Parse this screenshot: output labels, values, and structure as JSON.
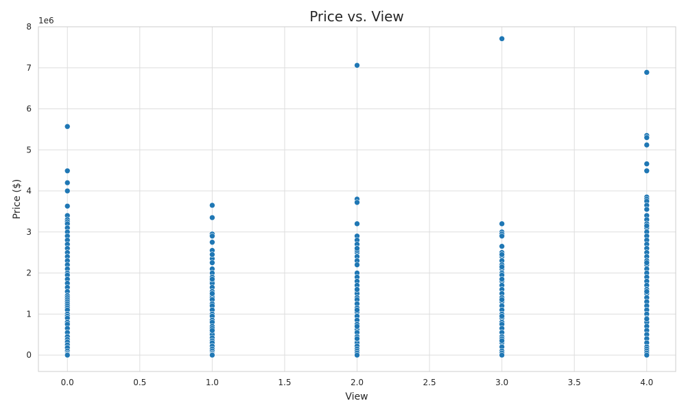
{
  "chart_data": {
    "type": "scatter",
    "title": "Price vs. View",
    "xlabel": "View",
    "ylabel": "Price ($)",
    "y_offset_label": "1e6",
    "xlim": [
      -0.2,
      4.2
    ],
    "ylim": [
      -0.4,
      8.0
    ],
    "y_scale": 1000000,
    "xticks": [
      0.0,
      0.5,
      1.0,
      1.5,
      2.0,
      2.5,
      3.0,
      3.5,
      4.0
    ],
    "xtick_labels": [
      "0.0",
      "0.5",
      "1.0",
      "1.5",
      "2.0",
      "2.5",
      "3.0",
      "3.5",
      "4.0"
    ],
    "yticks": [
      0,
      1,
      2,
      3,
      4,
      5,
      6,
      7,
      8
    ],
    "ytick_labels": [
      "0",
      "1",
      "2",
      "3",
      "4",
      "5",
      "6",
      "7",
      "8"
    ],
    "grid": true,
    "color": "#1f77b4",
    "series": [
      {
        "x": [
          0,
          0,
          0,
          0,
          0,
          0,
          0,
          0,
          0,
          0,
          0,
          0,
          0,
          0,
          0,
          0,
          0,
          0,
          0,
          0,
          0,
          0,
          0,
          0,
          0,
          0,
          0,
          0,
          0,
          0,
          0,
          0,
          0,
          0,
          0,
          0,
          0,
          0,
          0,
          0,
          0,
          0,
          0,
          0,
          0,
          0,
          0,
          0,
          0,
          0,
          1,
          1,
          1,
          1,
          1,
          1,
          1,
          1,
          1,
          1,
          1,
          1,
          1,
          1,
          1,
          1,
          1,
          1,
          1,
          1,
          1,
          1,
          1,
          1,
          1,
          1,
          1,
          1,
          1,
          1,
          1,
          1,
          1,
          1,
          1,
          1,
          1,
          1,
          1,
          1,
          1,
          1,
          2,
          2,
          2,
          2,
          2,
          2,
          2,
          2,
          2,
          2,
          2,
          2,
          2,
          2,
          2,
          2,
          2,
          2,
          2,
          2,
          2,
          2,
          2,
          2,
          2,
          2,
          2,
          2,
          2,
          2,
          2,
          2,
          2,
          2,
          2,
          2,
          2,
          2,
          2,
          2,
          2,
          2,
          3,
          3,
          3,
          3,
          3,
          3,
          3,
          3,
          3,
          3,
          3,
          3,
          3,
          3,
          3,
          3,
          3,
          3,
          3,
          3,
          3,
          3,
          3,
          3,
          3,
          3,
          3,
          3,
          3,
          3,
          3,
          3,
          3,
          3,
          3,
          3,
          3,
          3,
          3,
          3,
          4,
          4,
          4,
          4,
          4,
          4,
          4,
          4,
          4,
          4,
          4,
          4,
          4,
          4,
          4,
          4,
          4,
          4,
          4,
          4,
          4,
          4,
          4,
          4,
          4,
          4,
          4,
          4,
          4,
          4,
          4,
          4,
          4,
          4,
          4,
          4,
          4,
          4,
          4,
          4,
          4,
          4,
          4,
          4,
          4,
          4,
          4,
          4,
          4,
          4,
          4,
          4
        ],
        "y": [
          5.57,
          4.49,
          4.2,
          4.0,
          3.63,
          3.4,
          3.3,
          3.25,
          3.2,
          3.1,
          3.0,
          2.9,
          2.8,
          2.7,
          2.6,
          2.5,
          2.4,
          2.3,
          2.2,
          2.1,
          2.0,
          1.95,
          1.85,
          1.75,
          1.65,
          1.55,
          1.45,
          1.4,
          1.35,
          1.3,
          1.25,
          1.2,
          1.15,
          1.1,
          1.0,
          0.95,
          0.9,
          0.8,
          0.75,
          0.65,
          0.55,
          0.45,
          0.38,
          0.32,
          0.25,
          0.18,
          0.1,
          0.05,
          0.02,
          0.0,
          3.65,
          3.35,
          2.95,
          2.9,
          2.75,
          2.55,
          2.35,
          2.25,
          2.1,
          2.0,
          1.9,
          1.8,
          1.75,
          1.65,
          1.55,
          1.45,
          1.4,
          1.35,
          1.25,
          1.2,
          1.1,
          1.0,
          0.95,
          0.85,
          0.8,
          0.7,
          0.65,
          0.55,
          0.5,
          0.42,
          0.35,
          0.3,
          0.22,
          0.15,
          0.1,
          0.05,
          0.02,
          0.0,
          0.6,
          1.5,
          1.85,
          2.45,
          7.06,
          3.8,
          3.72,
          3.2,
          2.9,
          2.8,
          2.7,
          2.6,
          2.5,
          2.4,
          2.3,
          2.2,
          2.0,
          1.9,
          1.8,
          1.7,
          1.55,
          1.5,
          1.4,
          1.35,
          1.25,
          1.15,
          1.05,
          0.95,
          0.85,
          0.75,
          0.62,
          0.55,
          0.45,
          0.35,
          0.3,
          0.22,
          0.15,
          0.1,
          0.05,
          0.0,
          2.55,
          1.1,
          0.7,
          2.6,
          1.6,
          0.4,
          7.71,
          3.2,
          3.0,
          2.95,
          2.9,
          2.65,
          2.5,
          2.4,
          2.3,
          2.2,
          2.1,
          2.0,
          1.95,
          1.8,
          1.7,
          1.6,
          1.5,
          1.4,
          1.3,
          1.2,
          1.1,
          1.0,
          0.9,
          0.8,
          0.75,
          0.65,
          0.55,
          0.45,
          0.4,
          0.3,
          0.2,
          0.1,
          0.05,
          0.0,
          2.45,
          1.85,
          1.35,
          0.95,
          0.35,
          2.15,
          6.89,
          5.35,
          5.3,
          5.12,
          4.66,
          4.49,
          3.85,
          3.8,
          3.75,
          3.65,
          3.55,
          3.4,
          3.3,
          3.2,
          3.1,
          3.0,
          2.9,
          2.8,
          2.7,
          2.6,
          2.5,
          2.4,
          2.3,
          2.2,
          2.1,
          2.0,
          1.9,
          1.8,
          1.7,
          1.6,
          1.5,
          1.4,
          1.3,
          1.2,
          1.1,
          1.0,
          0.9,
          0.8,
          0.7,
          0.6,
          0.5,
          0.4,
          0.3,
          0.2,
          0.15,
          0.1,
          0.05,
          0.0,
          2.25,
          1.55,
          0.88,
          3.15
        ]
      }
    ]
  }
}
